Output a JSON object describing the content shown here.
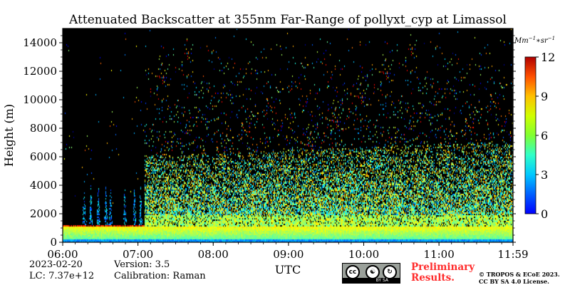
{
  "chart_data": {
    "type": "heatmap",
    "title": "Attenuated Backscatter at 355nm Far-Range of pollyxt_cyp at Limassol",
    "xlabel": "UTC",
    "ylabel": "Height (m)",
    "x_tick_labels": [
      "06:00",
      "07:00",
      "08:00",
      "09:00",
      "10:00",
      "11:00",
      "11:59"
    ],
    "x_ticks_hours": [
      6.0,
      7.0,
      8.0,
      9.0,
      10.0,
      11.0,
      11.9833
    ],
    "xlim_hours": [
      6.0,
      11.9833
    ],
    "y_ticks": [
      0,
      2000,
      4000,
      6000,
      8000,
      10000,
      12000,
      14000
    ],
    "y_tick_labels": [
      "0",
      "2000",
      "4000",
      "6000",
      "8000",
      "10000",
      "12000",
      "14000"
    ],
    "ylim": [
      0,
      15000
    ],
    "colorbar": {
      "label": "Mm^{-1}*sr^{-1}",
      "label_display": "Mm",
      "label_sup1": "−1",
      "label_mid": "∗sr",
      "label_sup2": "−1",
      "range": [
        0,
        12
      ],
      "ticks": [
        0,
        3,
        6,
        9,
        12
      ],
      "tick_labels": [
        "0",
        "3",
        "6",
        "9",
        "12"
      ],
      "colormap": "jet"
    },
    "background_color": "#000000",
    "signal_features": {
      "aerosol_layer_top_m": 1200,
      "aerosol_layer_value": 6.5,
      "dense_signal_top_m": 6500,
      "sparse_signal_top_m": 14500,
      "early_gap_hours": [
        6.0,
        7.08
      ],
      "early_streak_hours": [
        6.28,
        6.37,
        6.47,
        6.57,
        6.63,
        6.82,
        6.95,
        7.03
      ]
    }
  },
  "info": {
    "date": "2023-02-20",
    "lc": "LC: 7.37e+12",
    "version": "Version: 3.5",
    "calibration": "Calibration: Raman"
  },
  "footer": {
    "preliminary_line1": "Preliminary",
    "preliminary_line2": "Results.",
    "copyright_line1": "© TROPOS & ECoE 2023.",
    "copyright_line2": "CC BY SA 4.0 License.",
    "cc_icon_text": "cc",
    "cc_strip_text": "BY  SA"
  }
}
